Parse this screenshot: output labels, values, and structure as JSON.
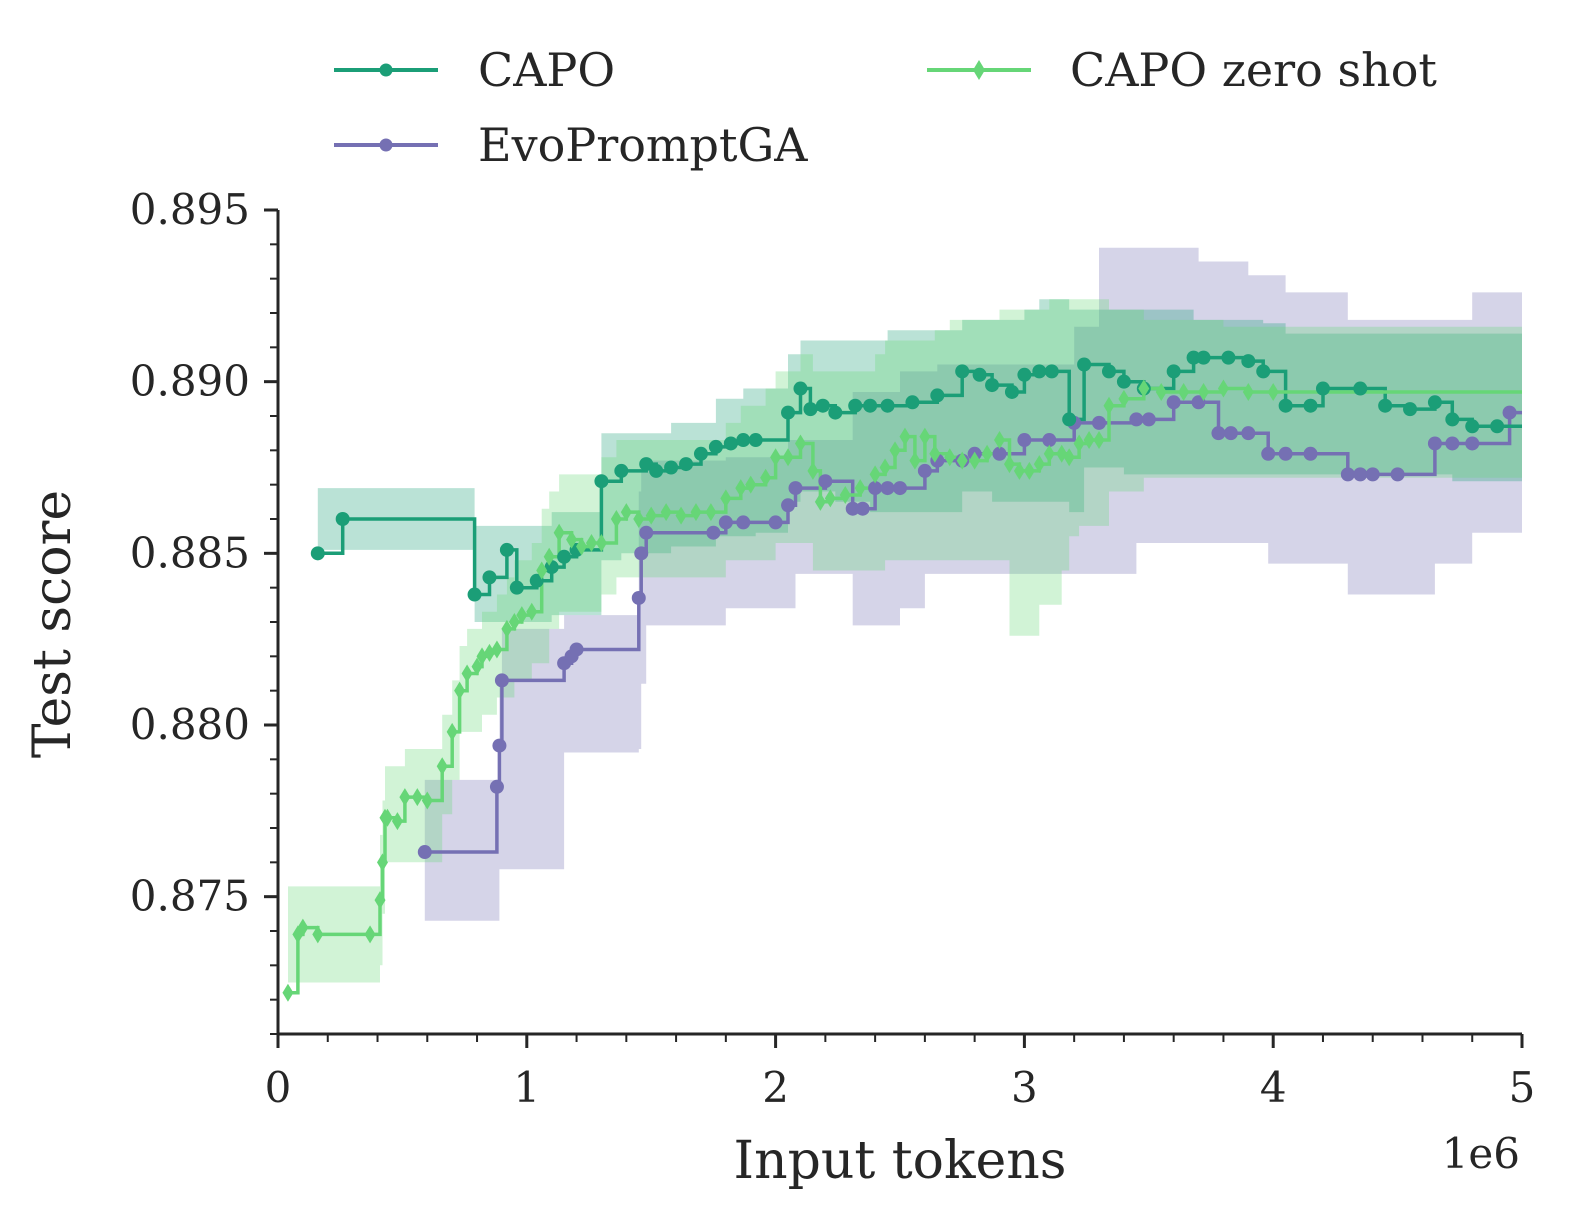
{
  "chart_data": {
    "type": "line",
    "xlabel": "Input tokens",
    "ylabel": "Test score",
    "x_offset_label": "1e6",
    "xlim": [
      0,
      5000000
    ],
    "ylim": [
      0.871,
      0.895
    ],
    "xticks": [
      0,
      1000000,
      2000000,
      3000000,
      4000000,
      5000000
    ],
    "xtick_labels": [
      "0",
      "1",
      "2",
      "3",
      "4",
      "5"
    ],
    "yticks": [
      0.875,
      0.88,
      0.885,
      0.89,
      0.895
    ],
    "ytick_labels": [
      "0.875",
      "0.880",
      "0.885",
      "0.890",
      "0.895"
    ],
    "grid": false,
    "legend_position": "top",
    "series": [
      {
        "name": "CAPO",
        "color": "#1b9e77",
        "marker": "circle",
        "x": [
          160000,
          260000,
          790000,
          850000,
          920000,
          960000,
          1040000,
          1100000,
          1150000,
          1200000,
          1300000,
          1380000,
          1480000,
          1520000,
          1580000,
          1640000,
          1700000,
          1760000,
          1820000,
          1870000,
          1920000,
          2050000,
          2100000,
          2140000,
          2190000,
          2240000,
          2320000,
          2380000,
          2450000,
          2550000,
          2650000,
          2750000,
          2820000,
          2870000,
          2950000,
          3000000,
          3060000,
          3110000,
          3180000,
          3240000,
          3340000,
          3400000,
          3480000,
          3600000,
          3680000,
          3720000,
          3820000,
          3900000,
          3960000,
          4050000,
          4150000,
          4200000,
          4350000,
          4450000,
          4550000,
          4650000,
          4720000,
          4800000,
          4900000,
          5000000
        ],
        "y": [
          0.885,
          0.886,
          0.8838,
          0.8843,
          0.8851,
          0.884,
          0.8842,
          0.8846,
          0.8849,
          0.8851,
          0.8871,
          0.8874,
          0.8876,
          0.8874,
          0.8875,
          0.8876,
          0.8879,
          0.8881,
          0.8882,
          0.8883,
          0.8883,
          0.8891,
          0.8898,
          0.8892,
          0.8893,
          0.8891,
          0.8893,
          0.8893,
          0.8893,
          0.8894,
          0.8896,
          0.8903,
          0.8902,
          0.8899,
          0.8897,
          0.8902,
          0.8903,
          0.8903,
          0.8889,
          0.8905,
          0.8903,
          0.89,
          0.8898,
          0.8903,
          0.8907,
          0.8907,
          0.8907,
          0.8906,
          0.8903,
          0.8893,
          0.8893,
          0.8898,
          0.8898,
          0.8893,
          0.8892,
          0.8894,
          0.8889,
          0.8887,
          0.8887,
          0.8887
        ],
        "band_low": [
          0.8851,
          0.8851,
          0.883,
          0.883,
          0.883,
          0.883,
          0.883,
          0.8832,
          0.8832,
          0.8832,
          0.8848,
          0.885,
          0.885,
          0.885,
          0.8852,
          0.8852,
          0.8852,
          0.8855,
          0.8855,
          0.8855,
          0.8856,
          0.8865,
          0.8868,
          0.8868,
          0.8868,
          0.8865,
          0.8865,
          0.8862,
          0.8862,
          0.8862,
          0.8862,
          0.8868,
          0.8868,
          0.8865,
          0.8865,
          0.8865,
          0.8865,
          0.8865,
          0.8862,
          0.8875,
          0.8875,
          0.8873,
          0.8873,
          0.8873,
          0.8873,
          0.8873,
          0.8873,
          0.8873,
          0.8873,
          0.8873,
          0.8873,
          0.8873,
          0.8873,
          0.8873,
          0.8873,
          0.8873,
          0.8871,
          0.8871,
          0.8871,
          0.8871
        ],
        "band_high": [
          0.8869,
          0.8869,
          0.8858,
          0.8858,
          0.8858,
          0.8858,
          0.8858,
          0.8862,
          0.8862,
          0.8862,
          0.8885,
          0.8885,
          0.8885,
          0.8885,
          0.8888,
          0.8888,
          0.8888,
          0.8895,
          0.8895,
          0.8898,
          0.8898,
          0.8908,
          0.8912,
          0.8912,
          0.8912,
          0.8912,
          0.8912,
          0.8912,
          0.8915,
          0.8915,
          0.8915,
          0.8918,
          0.8918,
          0.8918,
          0.8918,
          0.8921,
          0.8924,
          0.8924,
          0.8921,
          0.8921,
          0.8921,
          0.8921,
          0.8921,
          0.8921,
          0.8918,
          0.8918,
          0.8918,
          0.8918,
          0.8917,
          0.8914,
          0.8914,
          0.8914,
          0.8914,
          0.8914,
          0.8914,
          0.8914,
          0.8914,
          0.8914,
          0.8914,
          0.8914
        ]
      },
      {
        "name": "EvoPromptGA",
        "color": "#7570b3",
        "marker": "circle",
        "x": [
          590000,
          880000,
          890000,
          900000,
          1150000,
          1180000,
          1200000,
          1450000,
          1460000,
          1480000,
          1750000,
          1800000,
          1870000,
          2000000,
          2050000,
          2080000,
          2200000,
          2310000,
          2350000,
          2400000,
          2450000,
          2500000,
          2600000,
          2650000,
          2750000,
          2800000,
          2900000,
          3000000,
          3100000,
          3200000,
          3300000,
          3450000,
          3500000,
          3600000,
          3700000,
          3780000,
          3830000,
          3900000,
          3980000,
          4050000,
          4150000,
          4300000,
          4350000,
          4400000,
          4500000,
          4650000,
          4720000,
          4800000,
          4950000,
          5000000
        ],
        "y": [
          0.8763,
          0.8782,
          0.8794,
          0.8813,
          0.8818,
          0.882,
          0.8822,
          0.8837,
          0.885,
          0.8856,
          0.8856,
          0.8859,
          0.8859,
          0.8859,
          0.8864,
          0.8869,
          0.8871,
          0.8863,
          0.8863,
          0.8869,
          0.8869,
          0.8869,
          0.8874,
          0.8877,
          0.8877,
          0.8879,
          0.8879,
          0.8883,
          0.8883,
          0.8888,
          0.8888,
          0.8889,
          0.8889,
          0.8894,
          0.8894,
          0.8885,
          0.8885,
          0.8885,
          0.8879,
          0.8879,
          0.8879,
          0.8873,
          0.8873,
          0.8873,
          0.8873,
          0.8882,
          0.8882,
          0.8882,
          0.8891,
          0.8891
        ],
        "band_low": [
          0.8743,
          0.8743,
          0.8758,
          0.8758,
          0.8792,
          0.8792,
          0.8792,
          0.8793,
          0.8812,
          0.8829,
          0.8829,
          0.8834,
          0.8834,
          0.8834,
          0.8834,
          0.8844,
          0.8844,
          0.8829,
          0.8829,
          0.8829,
          0.8829,
          0.8834,
          0.8844,
          0.8844,
          0.8844,
          0.8844,
          0.8844,
          0.8844,
          0.8844,
          0.8844,
          0.8844,
          0.8853,
          0.8853,
          0.8853,
          0.8853,
          0.8853,
          0.8853,
          0.8853,
          0.8847,
          0.8847,
          0.8847,
          0.8838,
          0.8838,
          0.8838,
          0.8838,
          0.8847,
          0.8847,
          0.8856,
          0.8856,
          0.8856
        ],
        "band_high": [
          0.8784,
          0.8784,
          0.8812,
          0.8828,
          0.8832,
          0.8832,
          0.8832,
          0.8868,
          0.8877,
          0.8877,
          0.8877,
          0.8878,
          0.8878,
          0.8878,
          0.8883,
          0.8883,
          0.8883,
          0.8897,
          0.8897,
          0.8897,
          0.8897,
          0.8903,
          0.8903,
          0.8905,
          0.8905,
          0.8905,
          0.8905,
          0.8905,
          0.8905,
          0.8916,
          0.8939,
          0.8939,
          0.8939,
          0.8939,
          0.8935,
          0.8935,
          0.8935,
          0.8931,
          0.8931,
          0.8926,
          0.8926,
          0.8918,
          0.8918,
          0.8918,
          0.8918,
          0.8918,
          0.8918,
          0.8926,
          0.8926,
          0.8926
        ]
      },
      {
        "name": "CAPO zero shot",
        "color": "#66d677",
        "marker": "diamond",
        "x": [
          40000,
          80000,
          100000,
          160000,
          370000,
          410000,
          420000,
          430000,
          440000,
          480000,
          510000,
          560000,
          600000,
          660000,
          700000,
          730000,
          760000,
          800000,
          820000,
          850000,
          880000,
          920000,
          950000,
          980000,
          1020000,
          1060000,
          1090000,
          1130000,
          1180000,
          1220000,
          1260000,
          1300000,
          1360000,
          1400000,
          1450000,
          1500000,
          1560000,
          1620000,
          1680000,
          1740000,
          1800000,
          1860000,
          1900000,
          1960000,
          2000000,
          2050000,
          2100000,
          2150000,
          2180000,
          2220000,
          2280000,
          2340000,
          2400000,
          2440000,
          2480000,
          2520000,
          2560000,
          2600000,
          2640000,
          2700000,
          2750000,
          2800000,
          2850000,
          2900000,
          2940000,
          2980000,
          3020000,
          3060000,
          3100000,
          3150000,
          3180000,
          3220000,
          3260000,
          3300000,
          3340000,
          3400000,
          3480000,
          3550000,
          3640000,
          3720000,
          3800000,
          3900000,
          4000000,
          5000000
        ],
        "y": [
          0.8722,
          0.8739,
          0.8741,
          0.8739,
          0.8739,
          0.8749,
          0.876,
          0.8773,
          0.8773,
          0.8772,
          0.8779,
          0.8779,
          0.8778,
          0.8788,
          0.8798,
          0.881,
          0.8815,
          0.8817,
          0.882,
          0.8821,
          0.8822,
          0.8828,
          0.883,
          0.8832,
          0.8833,
          0.8845,
          0.8849,
          0.8856,
          0.8854,
          0.8852,
          0.8853,
          0.8853,
          0.886,
          0.8862,
          0.886,
          0.8861,
          0.8862,
          0.8861,
          0.8862,
          0.8862,
          0.8866,
          0.8869,
          0.887,
          0.8872,
          0.8878,
          0.8878,
          0.8882,
          0.8874,
          0.8865,
          0.8866,
          0.8867,
          0.8869,
          0.8873,
          0.8875,
          0.888,
          0.8884,
          0.8877,
          0.8884,
          0.8879,
          0.8878,
          0.8877,
          0.8877,
          0.8879,
          0.8883,
          0.8876,
          0.8874,
          0.8874,
          0.8876,
          0.8879,
          0.8879,
          0.8878,
          0.8882,
          0.8883,
          0.8883,
          0.8893,
          0.8895,
          0.8898,
          0.8897,
          0.8897,
          0.8897,
          0.8898,
          0.8897,
          0.8897,
          0.8897
        ],
        "band_low": [
          0.8725,
          0.8725,
          0.8725,
          0.8725,
          0.8725,
          0.873,
          0.8745,
          0.876,
          0.876,
          0.876,
          0.876,
          0.876,
          0.876,
          0.8774,
          0.8784,
          0.8798,
          0.8798,
          0.8798,
          0.8803,
          0.8803,
          0.8808,
          0.8808,
          0.8813,
          0.8813,
          0.8818,
          0.8818,
          0.8828,
          0.8833,
          0.8833,
          0.8833,
          0.8833,
          0.8838,
          0.8843,
          0.8843,
          0.8843,
          0.8843,
          0.8843,
          0.8843,
          0.8843,
          0.8843,
          0.8848,
          0.8848,
          0.8848,
          0.8848,
          0.8853,
          0.8853,
          0.8853,
          0.8845,
          0.8845,
          0.8845,
          0.8845,
          0.8845,
          0.8845,
          0.8848,
          0.8848,
          0.8848,
          0.8848,
          0.8848,
          0.8848,
          0.8848,
          0.8848,
          0.8848,
          0.8848,
          0.8848,
          0.8826,
          0.8826,
          0.8826,
          0.8835,
          0.8835,
          0.8845,
          0.8855,
          0.8858,
          0.8858,
          0.8858,
          0.8868,
          0.8868,
          0.8872,
          0.8872,
          0.8872,
          0.8872,
          0.8872,
          0.8872,
          0.8872,
          0.8872
        ],
        "band_high": [
          0.8753,
          0.8753,
          0.8753,
          0.8753,
          0.8753,
          0.8768,
          0.8778,
          0.8788,
          0.8788,
          0.8788,
          0.8793,
          0.8793,
          0.8793,
          0.8803,
          0.8813,
          0.8823,
          0.8828,
          0.8828,
          0.8833,
          0.8833,
          0.8838,
          0.8843,
          0.8848,
          0.8848,
          0.8853,
          0.8863,
          0.8868,
          0.8873,
          0.8873,
          0.8873,
          0.8873,
          0.8878,
          0.8883,
          0.8883,
          0.8883,
          0.8883,
          0.8883,
          0.8883,
          0.8883,
          0.8883,
          0.8888,
          0.8893,
          0.8893,
          0.8898,
          0.8903,
          0.8903,
          0.8908,
          0.8903,
          0.8903,
          0.8903,
          0.8903,
          0.8903,
          0.8908,
          0.8912,
          0.8912,
          0.8912,
          0.8912,
          0.8912,
          0.8915,
          0.8918,
          0.8918,
          0.8918,
          0.8918,
          0.8921,
          0.8921,
          0.8921,
          0.8921,
          0.8921,
          0.8924,
          0.8924,
          0.8924,
          0.8924,
          0.8924,
          0.8924,
          0.8921,
          0.8921,
          0.8918,
          0.8918,
          0.8918,
          0.8918,
          0.8916,
          0.8916,
          0.8916,
          0.8916
        ]
      }
    ]
  }
}
